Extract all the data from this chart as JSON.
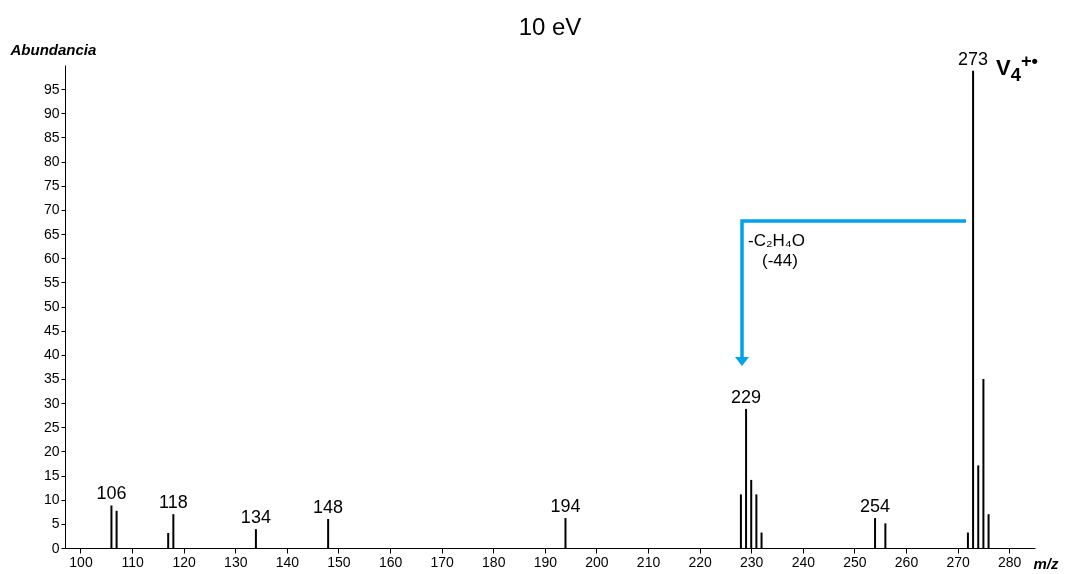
{
  "chart_data": {
    "type": "bar",
    "title": "10 eV",
    "xlabel": "m/z",
    "ylabel": "Abundancia",
    "x": [
      106,
      107,
      117,
      118,
      134,
      148,
      194,
      228,
      229,
      230,
      231,
      232,
      254,
      256,
      272,
      273,
      274,
      275,
      276
    ],
    "values": [
      8.8,
      7.7,
      3.1,
      7.0,
      3.9,
      6.0,
      6.2,
      11.1,
      28.8,
      14.1,
      11.1,
      3.2,
      6.2,
      5.1,
      3.2,
      98.8,
      17.1,
      35.0,
      7.0
    ],
    "color": "#000000",
    "xlim": [
      97,
      285
    ],
    "xticks": [
      100,
      110,
      120,
      130,
      140,
      150,
      160,
      170,
      180,
      190,
      200,
      210,
      220,
      230,
      240,
      250,
      260,
      270,
      280
    ],
    "ylim": [
      0,
      100
    ],
    "yticks": [
      0,
      5,
      10,
      15,
      20,
      25,
      30,
      35,
      40,
      45,
      50,
      55,
      60,
      65,
      70,
      75,
      80,
      85,
      90,
      95
    ],
    "grid": false,
    "annotations": [
      {
        "text": "106",
        "x": 106,
        "y": 8.8
      },
      {
        "text": "118",
        "x": 118,
        "y": 7.0
      },
      {
        "text": "134",
        "x": 134,
        "y": 3.9
      },
      {
        "text": "148",
        "x": 148,
        "y": 6.0
      },
      {
        "text": "194",
        "x": 194,
        "y": 6.2
      },
      {
        "text": "229",
        "x": 229,
        "y": 28.8
      },
      {
        "text": "254",
        "x": 254,
        "y": 6.2
      },
      {
        "text": "273",
        "x": 273,
        "y": 98.8
      },
      "V$_{4}$$^{+•}$",
      "-C₂H₄O",
      "(-44)"
    ]
  }
}
